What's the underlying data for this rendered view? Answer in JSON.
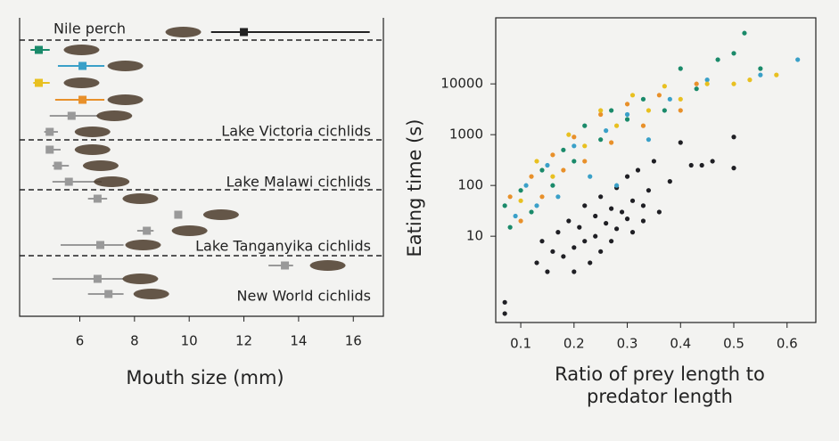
{
  "chart_data": [
    {
      "type": "dot",
      "x_label": "Mouth size (mm)",
      "categories": [
        "Nile perch",
        null,
        null,
        null,
        null,
        null,
        null,
        null,
        null,
        null,
        null,
        null,
        null,
        null,
        null,
        null,
        null
      ],
      "values": [
        12,
        4.5,
        6.1,
        4.5,
        6.1,
        5.7,
        4.9,
        4.9,
        5.2,
        5.6,
        6.65,
        9.6,
        8.45,
        6.75,
        13.5,
        6.65,
        7.05
      ],
      "lows": [
        10.8,
        4.2,
        5.2,
        4.3,
        5.1,
        4.9,
        4.7,
        4.8,
        5.0,
        5.0,
        6.3,
        null,
        8.1,
        5.3,
        12.9,
        5.0,
        6.3
      ],
      "highs": [
        16.6,
        4.9,
        6.9,
        4.9,
        6.9,
        6.7,
        5.2,
        5.3,
        5.6,
        6.8,
        7.0,
        null,
        8.7,
        7.6,
        13.8,
        7.6,
        7.6
      ],
      "colors": [
        "#222222",
        "#1a8a6a",
        "#3aa0c8",
        "#e8c020",
        "#e8902a",
        "#999999",
        "#999999",
        "#999999",
        "#999999",
        "#999999",
        "#999999",
        "#999999",
        "#999999",
        "#999999",
        "#999999",
        "#999999",
        "#999999"
      ],
      "annotations": [
        "Lake Victoria cichlids",
        "Lake Malawi cichlids",
        "Lake Tanganyika cichlids",
        "New World cichlids"
      ],
      "xlim": [
        3.8,
        17.1
      ],
      "xticks": [
        6,
        8,
        10,
        12,
        14,
        16
      ]
    },
    {
      "type": "scatter",
      "x_label": "Ratio of prey length to predator length",
      "y_label": "Eating time (s)",
      "log_y": true,
      "xlim": [
        0.053,
        0.654
      ],
      "ylim": [
        0.2,
        200000
      ],
      "xticks": [
        0.1,
        0.2,
        0.3,
        0.4,
        0.5,
        0.6
      ],
      "yticks": [
        10,
        100,
        1000,
        10000
      ],
      "series": [
        {
          "color": "#1f1f24",
          "x": [
            0.13,
            0.14,
            0.15,
            0.16,
            0.17,
            0.18,
            0.19,
            0.2,
            0.2,
            0.21,
            0.22,
            0.22,
            0.23,
            0.24,
            0.24,
            0.25,
            0.25,
            0.26,
            0.27,
            0.27,
            0.28,
            0.28,
            0.29,
            0.3,
            0.3,
            0.31,
            0.31,
            0.32,
            0.33,
            0.33,
            0.34,
            0.35,
            0.36,
            0.38,
            0.4,
            0.42,
            0.44,
            0.46,
            0.5,
            0.5,
            0.07,
            0.07
          ],
          "values": [
            3,
            8,
            2,
            5,
            12,
            4,
            20,
            6,
            2,
            15,
            40,
            8,
            3,
            25,
            10,
            60,
            5,
            18,
            35,
            8,
            90,
            14,
            30,
            150,
            22,
            50,
            12,
            200,
            40,
            20,
            80,
            300,
            30,
            120,
            700,
            250,
            250,
            300,
            900,
            220,
            0.5,
            0.3
          ]
        },
        {
          "color": "#1a8a6a",
          "x": [
            0.07,
            0.08,
            0.1,
            0.12,
            0.14,
            0.16,
            0.18,
            0.2,
            0.22,
            0.25,
            0.27,
            0.3,
            0.33,
            0.37,
            0.4,
            0.43,
            0.47,
            0.5,
            0.52,
            0.55
          ],
          "values": [
            40,
            15,
            80,
            30,
            200,
            100,
            500,
            300,
            1500,
            800,
            3000,
            2000,
            5000,
            3000,
            20000,
            8000,
            30000,
            40000,
            100000,
            20000
          ]
        },
        {
          "color": "#e8902a",
          "x": [
            0.08,
            0.1,
            0.12,
            0.14,
            0.16,
            0.18,
            0.2,
            0.22,
            0.25,
            0.27,
            0.3,
            0.33,
            0.36,
            0.4,
            0.43
          ],
          "values": [
            60,
            20,
            150,
            60,
            400,
            200,
            900,
            300,
            2500,
            700,
            4000,
            1500,
            6000,
            3000,
            10000
          ]
        },
        {
          "color": "#3aa0c8",
          "x": [
            0.09,
            0.11,
            0.13,
            0.15,
            0.17,
            0.2,
            0.23,
            0.26,
            0.28,
            0.3,
            0.34,
            0.38,
            0.45,
            0.55,
            0.62
          ],
          "values": [
            25,
            100,
            40,
            250,
            60,
            600,
            150,
            1200,
            100,
            2500,
            800,
            5000,
            12000,
            15000,
            30000
          ]
        },
        {
          "color": "#e8c020",
          "x": [
            0.1,
            0.13,
            0.16,
            0.19,
            0.22,
            0.25,
            0.28,
            0.31,
            0.34,
            0.37,
            0.4,
            0.45,
            0.5,
            0.53,
            0.58
          ],
          "values": [
            50,
            300,
            150,
            1000,
            600,
            3000,
            1500,
            6000,
            3000,
            9000,
            5000,
            10000,
            10000,
            12000,
            15000
          ]
        }
      ]
    }
  ]
}
